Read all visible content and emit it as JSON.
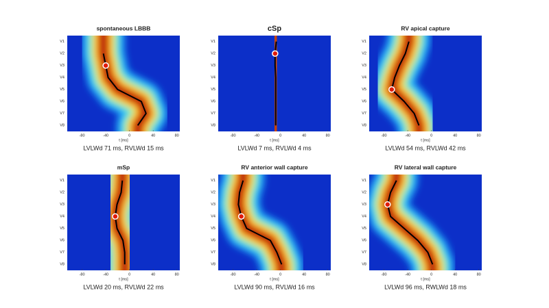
{
  "chart_data": [
    {
      "type": "line",
      "title": "spontaneous LBBB",
      "xlabel": "t [ms]",
      "caption": "LVLWd 71 ms, RVLWd 15 ms",
      "categories": [
        "V1",
        "V2",
        "V3",
        "V4",
        "V5",
        "V6",
        "V7",
        "V8"
      ],
      "values": [
        null,
        -44,
        -40,
        -36,
        -20,
        20,
        28,
        14
      ],
      "highlight_index": 2,
      "xlim": [
        -105,
        85
      ],
      "xticks": [
        -80,
        -40,
        0,
        40,
        80
      ],
      "color": "#000000"
    },
    {
      "type": "line",
      "title": "cSp",
      "xlabel": "t [ms]",
      "caption": "LVLWd 7 ms, RVLWd 4 ms",
      "categories": [
        "V1",
        "V2",
        "V3",
        "V4",
        "V5",
        "V6",
        "V7",
        "V8"
      ],
      "values": [
        -7,
        -9,
        -9,
        -8,
        -8,
        -8,
        -8,
        -8
      ],
      "highlight_index": 1,
      "xlim": [
        -105,
        85
      ],
      "xticks": [
        -80,
        -40,
        0,
        40,
        80
      ],
      "color": "#000000"
    },
    {
      "type": "line",
      "title": "RV apical capture",
      "xlabel": "t [ms]",
      "caption": "LVLWd 54 ms, RVLWd 42 ms",
      "categories": [
        "V1",
        "V2",
        "V3",
        "V4",
        "V5",
        "V6",
        "V7",
        "V8"
      ],
      "values": [
        -38,
        -44,
        -54,
        -62,
        -67,
        -46,
        -29,
        -21
      ],
      "highlight_index": 4,
      "xlim": [
        -105,
        85
      ],
      "xticks": [
        -80,
        -40,
        0,
        40,
        80
      ],
      "color": "#000000"
    },
    {
      "type": "line",
      "title": "mSp",
      "xlabel": "t [ms]",
      "caption": "LVLWd 20 ms, RVLWd 22 ms",
      "categories": [
        "V1",
        "V2",
        "V3",
        "V4",
        "V5",
        "V6",
        "V7",
        "V8"
      ],
      "values": [
        -12,
        -14,
        -21,
        -24,
        -21,
        -11,
        -8,
        -8
      ],
      "highlight_index": 3,
      "xlim": [
        -105,
        85
      ],
      "xticks": [
        -80,
        -40,
        0,
        40,
        80
      ],
      "color": "#000000"
    },
    {
      "type": "line",
      "title": "RV anterior wall capture",
      "xlabel": "t [ms]",
      "caption": "LVLWd 90 ms, RVLWd 16 ms",
      "categories": [
        "V1",
        "V2",
        "V3",
        "V4",
        "V5",
        "V6",
        "V7",
        "V8"
      ],
      "values": [
        -63,
        -69,
        -71,
        -66,
        -57,
        -17,
        -6,
        2
      ],
      "highlight_index": 3,
      "xlim": [
        -105,
        85
      ],
      "xticks": [
        -80,
        -40,
        0,
        40,
        80
      ],
      "color": "#000000"
    },
    {
      "type": "line",
      "title": "RV lateral wall capture",
      "xlabel": "t [ms]",
      "caption": "LVLWd 96 ms, RWLWd 18 ms",
      "categories": [
        "V1",
        "V2",
        "V3",
        "V4",
        "V5",
        "V6",
        "V7",
        "V8"
      ],
      "values": [
        -59,
        -69,
        -74,
        -69,
        -46,
        -23,
        -6,
        2
      ],
      "highlight_index": 2,
      "xlim": [
        -105,
        85
      ],
      "xticks": [
        -80,
        -40,
        0,
        40,
        80
      ],
      "color": "#000000"
    }
  ]
}
